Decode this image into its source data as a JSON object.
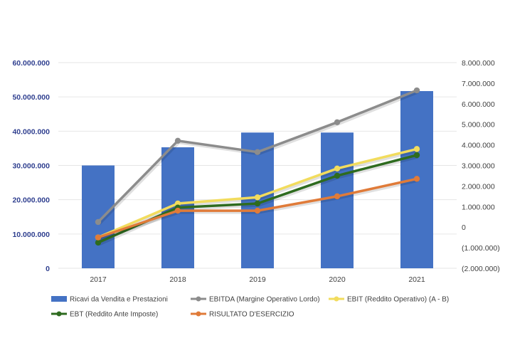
{
  "chart_data": {
    "type": "bar+line",
    "categories": [
      "2017",
      "2018",
      "2019",
      "2020",
      "2021"
    ],
    "bar_series": {
      "name": "Ricavi da Vendita e Prestazioni",
      "axis": "left",
      "color": "#4472c4",
      "values": [
        30000000,
        35300000,
        39600000,
        39600000,
        51700000
      ]
    },
    "line_series": [
      {
        "name": "EBITDA (Margine Operativo Lordo)",
        "axis": "right",
        "color": "#8c8c8c",
        "values": [
          250000,
          4200000,
          3650000,
          5100000,
          6650000
        ]
      },
      {
        "name": "EBIT (Reddito Operativo) (A - B)",
        "axis": "right",
        "color": "#f2dc5d",
        "values": [
          -500000,
          1150000,
          1450000,
          2850000,
          3800000
        ]
      },
      {
        "name": "EBT (Reddito Ante Imposte)",
        "axis": "right",
        "color": "#2e6b1f",
        "values": [
          -750000,
          950000,
          1150000,
          2500000,
          3500000
        ]
      },
      {
        "name": "RISULTATO D'ESERCIZIO",
        "axis": "right",
        "color": "#e07b39",
        "values": [
          -500000,
          800000,
          800000,
          1500000,
          2350000
        ]
      }
    ],
    "left_axis": {
      "ylim": [
        0,
        60000000
      ],
      "ticks": [
        0,
        10000000,
        20000000,
        30000000,
        40000000,
        50000000,
        60000000
      ],
      "tick_labels": [
        "0",
        "10.000.000",
        "20.000.000",
        "30.000.000",
        "40.000.000",
        "50.000.000",
        "60.000.000"
      ]
    },
    "right_axis": {
      "ylim": [
        -2000000,
        8000000
      ],
      "ticks": [
        -2000000,
        -1000000,
        0,
        1000000,
        2000000,
        3000000,
        4000000,
        5000000,
        6000000,
        7000000,
        8000000
      ],
      "tick_labels": [
        "(2.000.000)",
        "(1.000.000)",
        "0",
        "1.000.000",
        "2.000.000",
        "3.000.000",
        "4.000.000",
        "5.000.000",
        "6.000.000",
        "7.000.000",
        "8.000.000"
      ]
    },
    "grid": true,
    "legend_position": "bottom"
  }
}
